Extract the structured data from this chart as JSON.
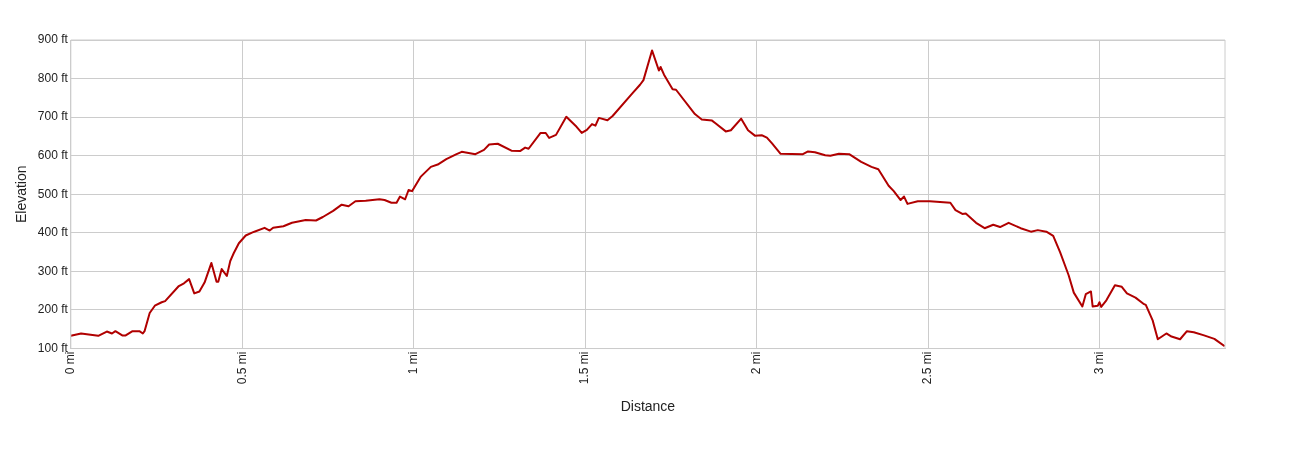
{
  "chart_data": {
    "type": "line",
    "xlabel": "Distance",
    "ylabel": "Elevation",
    "grid": true,
    "legend": false,
    "marker": "none",
    "line_style": "solid",
    "xlim": [
      0,
      3.366
    ],
    "ylim": [
      100,
      900
    ],
    "xticks": [
      {
        "value": 0,
        "label": "0 mi"
      },
      {
        "value": 0.5,
        "label": "0.5 mi"
      },
      {
        "value": 1,
        "label": "1 mi"
      },
      {
        "value": 1.5,
        "label": "1.5 mi"
      },
      {
        "value": 2,
        "label": "2 mi"
      },
      {
        "value": 2.5,
        "label": "2.5 mi"
      },
      {
        "value": 3,
        "label": "3 mi"
      }
    ],
    "yticks": [
      {
        "value": 100,
        "label": "100 ft"
      },
      {
        "value": 200,
        "label": "200 ft"
      },
      {
        "value": 300,
        "label": "300 ft"
      },
      {
        "value": 400,
        "label": "400 ft"
      },
      {
        "value": 500,
        "label": "500 ft"
      },
      {
        "value": 600,
        "label": "600 ft"
      },
      {
        "value": 700,
        "label": "700 ft"
      },
      {
        "value": 800,
        "label": "800 ft"
      },
      {
        "value": 900,
        "label": "900 ft"
      }
    ],
    "series": [
      {
        "color": "#b00000",
        "x": [
          0,
          0.03,
          0.08,
          0.105,
          0.12,
          0.13,
          0.15,
          0.16,
          0.18,
          0.2,
          0.21,
          0.215,
          0.23,
          0.245,
          0.265,
          0.275,
          0.315,
          0.33,
          0.345,
          0.36,
          0.375,
          0.39,
          0.41,
          0.425,
          0.43,
          0.44,
          0.455,
          0.465,
          0.475,
          0.49,
          0.51,
          0.53,
          0.565,
          0.58,
          0.59,
          0.62,
          0.645,
          0.685,
          0.715,
          0.735,
          0.765,
          0.79,
          0.81,
          0.83,
          0.86,
          0.9,
          0.915,
          0.935,
          0.95,
          0.96,
          0.975,
          0.985,
          0.995,
          1.02,
          1.05,
          1.07,
          1.095,
          1.125,
          1.14,
          1.18,
          1.205,
          1.22,
          1.245,
          1.285,
          1.31,
          1.325,
          1.335,
          1.37,
          1.385,
          1.395,
          1.415,
          1.445,
          1.475,
          1.49,
          1.505,
          1.52,
          1.53,
          1.54,
          1.565,
          1.58,
          1.635,
          1.66,
          1.67,
          1.695,
          1.715,
          1.72,
          1.73,
          1.755,
          1.765,
          1.82,
          1.84,
          1.87,
          1.88,
          1.91,
          1.925,
          1.955,
          1.975,
          1.995,
          2.015,
          2.03,
          2.045,
          2.07,
          2.135,
          2.15,
          2.17,
          2.2,
          2.215,
          2.24,
          2.27,
          2.305,
          2.335,
          2.355,
          2.385,
          2.4,
          2.42,
          2.43,
          2.44,
          2.47,
          2.505,
          2.565,
          2.58,
          2.6,
          2.61,
          2.64,
          2.665,
          2.69,
          2.71,
          2.735,
          2.77,
          2.8,
          2.82,
          2.845,
          2.865,
          2.885,
          2.91,
          2.925,
          2.95,
          2.96,
          2.975,
          2.98,
          2.995,
          3.0,
          3.005,
          3.02,
          3.045,
          3.065,
          3.08,
          3.105,
          3.13,
          3.135,
          3.155,
          3.17,
          3.195,
          3.21,
          3.235,
          3.255,
          3.275,
          3.305,
          3.335,
          3.365
        ],
        "values": [
          133,
          139,
          133,
          144,
          139,
          145,
          134,
          134,
          145,
          145,
          139,
          145,
          192,
          211,
          220,
          223,
          262,
          269,
          280,
          243,
          248,
          271,
          322,
          273,
          273,
          306,
          288,
          327,
          347,
          373,
          393,
          401,
          413,
          406,
          413,
          417,
          426,
          433,
          432,
          441,
          457,
          473,
          469,
          482,
          483,
          487,
          485,
          478,
          478,
          494,
          487,
          511,
          508,
          545,
          571,
          577,
          591,
          604,
          610,
          604,
          615,
          629,
          631,
          613,
          612,
          621,
          618,
          659,
          659,
          646,
          654,
          701,
          675,
          659,
          667,
          682,
          678,
          698,
          692,
          703,
          759,
          784,
          796,
          873,
          821,
          830,
          810,
          772,
          771,
          708,
          694,
          691,
          684,
          663,
          666,
          696,
          666,
          652,
          653,
          647,
          632,
          605,
          604,
          611,
          609,
          601,
          600,
          605,
          604,
          584,
          571,
          565,
          522,
          508,
          485,
          494,
          475,
          482,
          482,
          478,
          459,
          449,
          450,
          426,
          412,
          421,
          415,
          426,
          412,
          403,
          407,
          403,
          392,
          350,
          290,
          245,
          209,
          241,
          248,
          209,
          211,
          220,
          208,
          225,
          264,
          260,
          243,
          232,
          215,
          213,
          173,
          124,
          139,
          131,
          124,
          145,
          142,
          134,
          125,
          106
        ]
      }
    ]
  }
}
